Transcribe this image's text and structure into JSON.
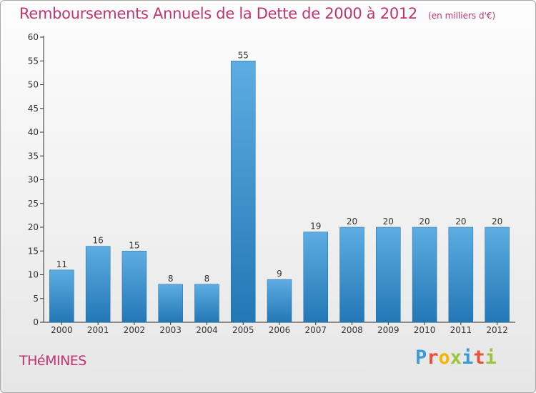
{
  "header": {
    "title": "Remboursements Annuels de la Dette de 2000 à 2012",
    "subtitle": "(en milliers d'€)"
  },
  "footer": {
    "commune": "THéMINES",
    "brand_letters": [
      "P",
      "r",
      "o",
      "x",
      "i",
      "t",
      "i"
    ],
    "brand_colors": [
      "#3a9bd8",
      "#e8503a",
      "#f5b400",
      "#9bc53d",
      "#3a9bd8",
      "#e8503a",
      "#9bc53d"
    ]
  },
  "colors": {
    "bar_light": "#5dade2",
    "bar_dark": "#2277b5",
    "axis": "#333333",
    "grid": "#bbbbbb",
    "accent": "#c0356e"
  },
  "chart_data": {
    "type": "bar",
    "title": "Remboursements Annuels de la Dette de 2000 à 2012",
    "subtitle": "(en milliers d'€)",
    "categories": [
      "2000",
      "2001",
      "2002",
      "2003",
      "2004",
      "2005",
      "2006",
      "2007",
      "2008",
      "2009",
      "2010",
      "2011",
      "2012"
    ],
    "values": [
      11,
      16,
      15,
      8,
      8,
      55,
      9,
      19,
      20,
      20,
      20,
      20,
      20
    ],
    "ylim": [
      0,
      60
    ],
    "yticks": [
      0,
      5,
      10,
      15,
      20,
      25,
      30,
      35,
      40,
      45,
      50,
      55,
      60
    ],
    "grid": false,
    "data_labels": true
  }
}
